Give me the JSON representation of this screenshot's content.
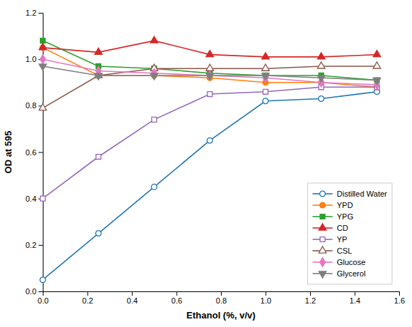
{
  "chart_data": {
    "type": "line",
    "xlabel": "Ethanol (%, v/v)",
    "ylabel": "OD at 595",
    "x": [
      0.0,
      0.25,
      0.5,
      0.75,
      1.0,
      1.25,
      1.5
    ],
    "series": [
      {
        "name": "Distilled Water",
        "marker": "circle-open",
        "values": [
          0.05,
          0.25,
          0.45,
          0.65,
          0.82,
          0.83,
          0.86
        ]
      },
      {
        "name": "YPD",
        "marker": "circle",
        "values": [
          1.05,
          0.93,
          0.93,
          0.92,
          0.9,
          0.9,
          0.88
        ]
      },
      {
        "name": "YPG",
        "marker": "square",
        "values": [
          1.08,
          0.97,
          0.96,
          0.94,
          0.93,
          0.93,
          0.91
        ]
      },
      {
        "name": "CD",
        "marker": "triangle-up",
        "values": [
          1.05,
          1.03,
          1.08,
          1.02,
          1.01,
          1.01,
          1.02
        ]
      },
      {
        "name": "YP",
        "marker": "square-open",
        "values": [
          0.4,
          0.58,
          0.74,
          0.85,
          0.86,
          0.88,
          0.88
        ]
      },
      {
        "name": "CSL",
        "marker": "triangle-up-open",
        "values": [
          0.79,
          0.93,
          0.96,
          0.96,
          0.96,
          0.97,
          0.97
        ]
      },
      {
        "name": "Glucose",
        "marker": "diamond",
        "values": [
          1.0,
          0.95,
          0.94,
          0.93,
          0.92,
          0.9,
          0.89
        ]
      },
      {
        "name": "Glycerol",
        "marker": "triangle-down",
        "values": [
          0.97,
          0.93,
          0.93,
          0.93,
          0.93,
          0.92,
          0.91
        ]
      }
    ],
    "xlim": [
      0.0,
      1.6
    ],
    "ylim": [
      0.0,
      1.2
    ],
    "xticks": [
      {
        "value": 0.0,
        "label": "0.0"
      },
      0.2,
      0.4,
      0.6,
      0.8,
      {
        "value": 1.0,
        "label": "1.0"
      },
      1.2,
      1.4,
      1.6
    ],
    "yticks": [
      {
        "value": 0.0,
        "label": "0.0"
      },
      0.2,
      0.4,
      0.6,
      0.8,
      {
        "value": 1.0,
        "label": "1.0"
      },
      1.2
    ],
    "grid": false,
    "legend": "lower right"
  }
}
